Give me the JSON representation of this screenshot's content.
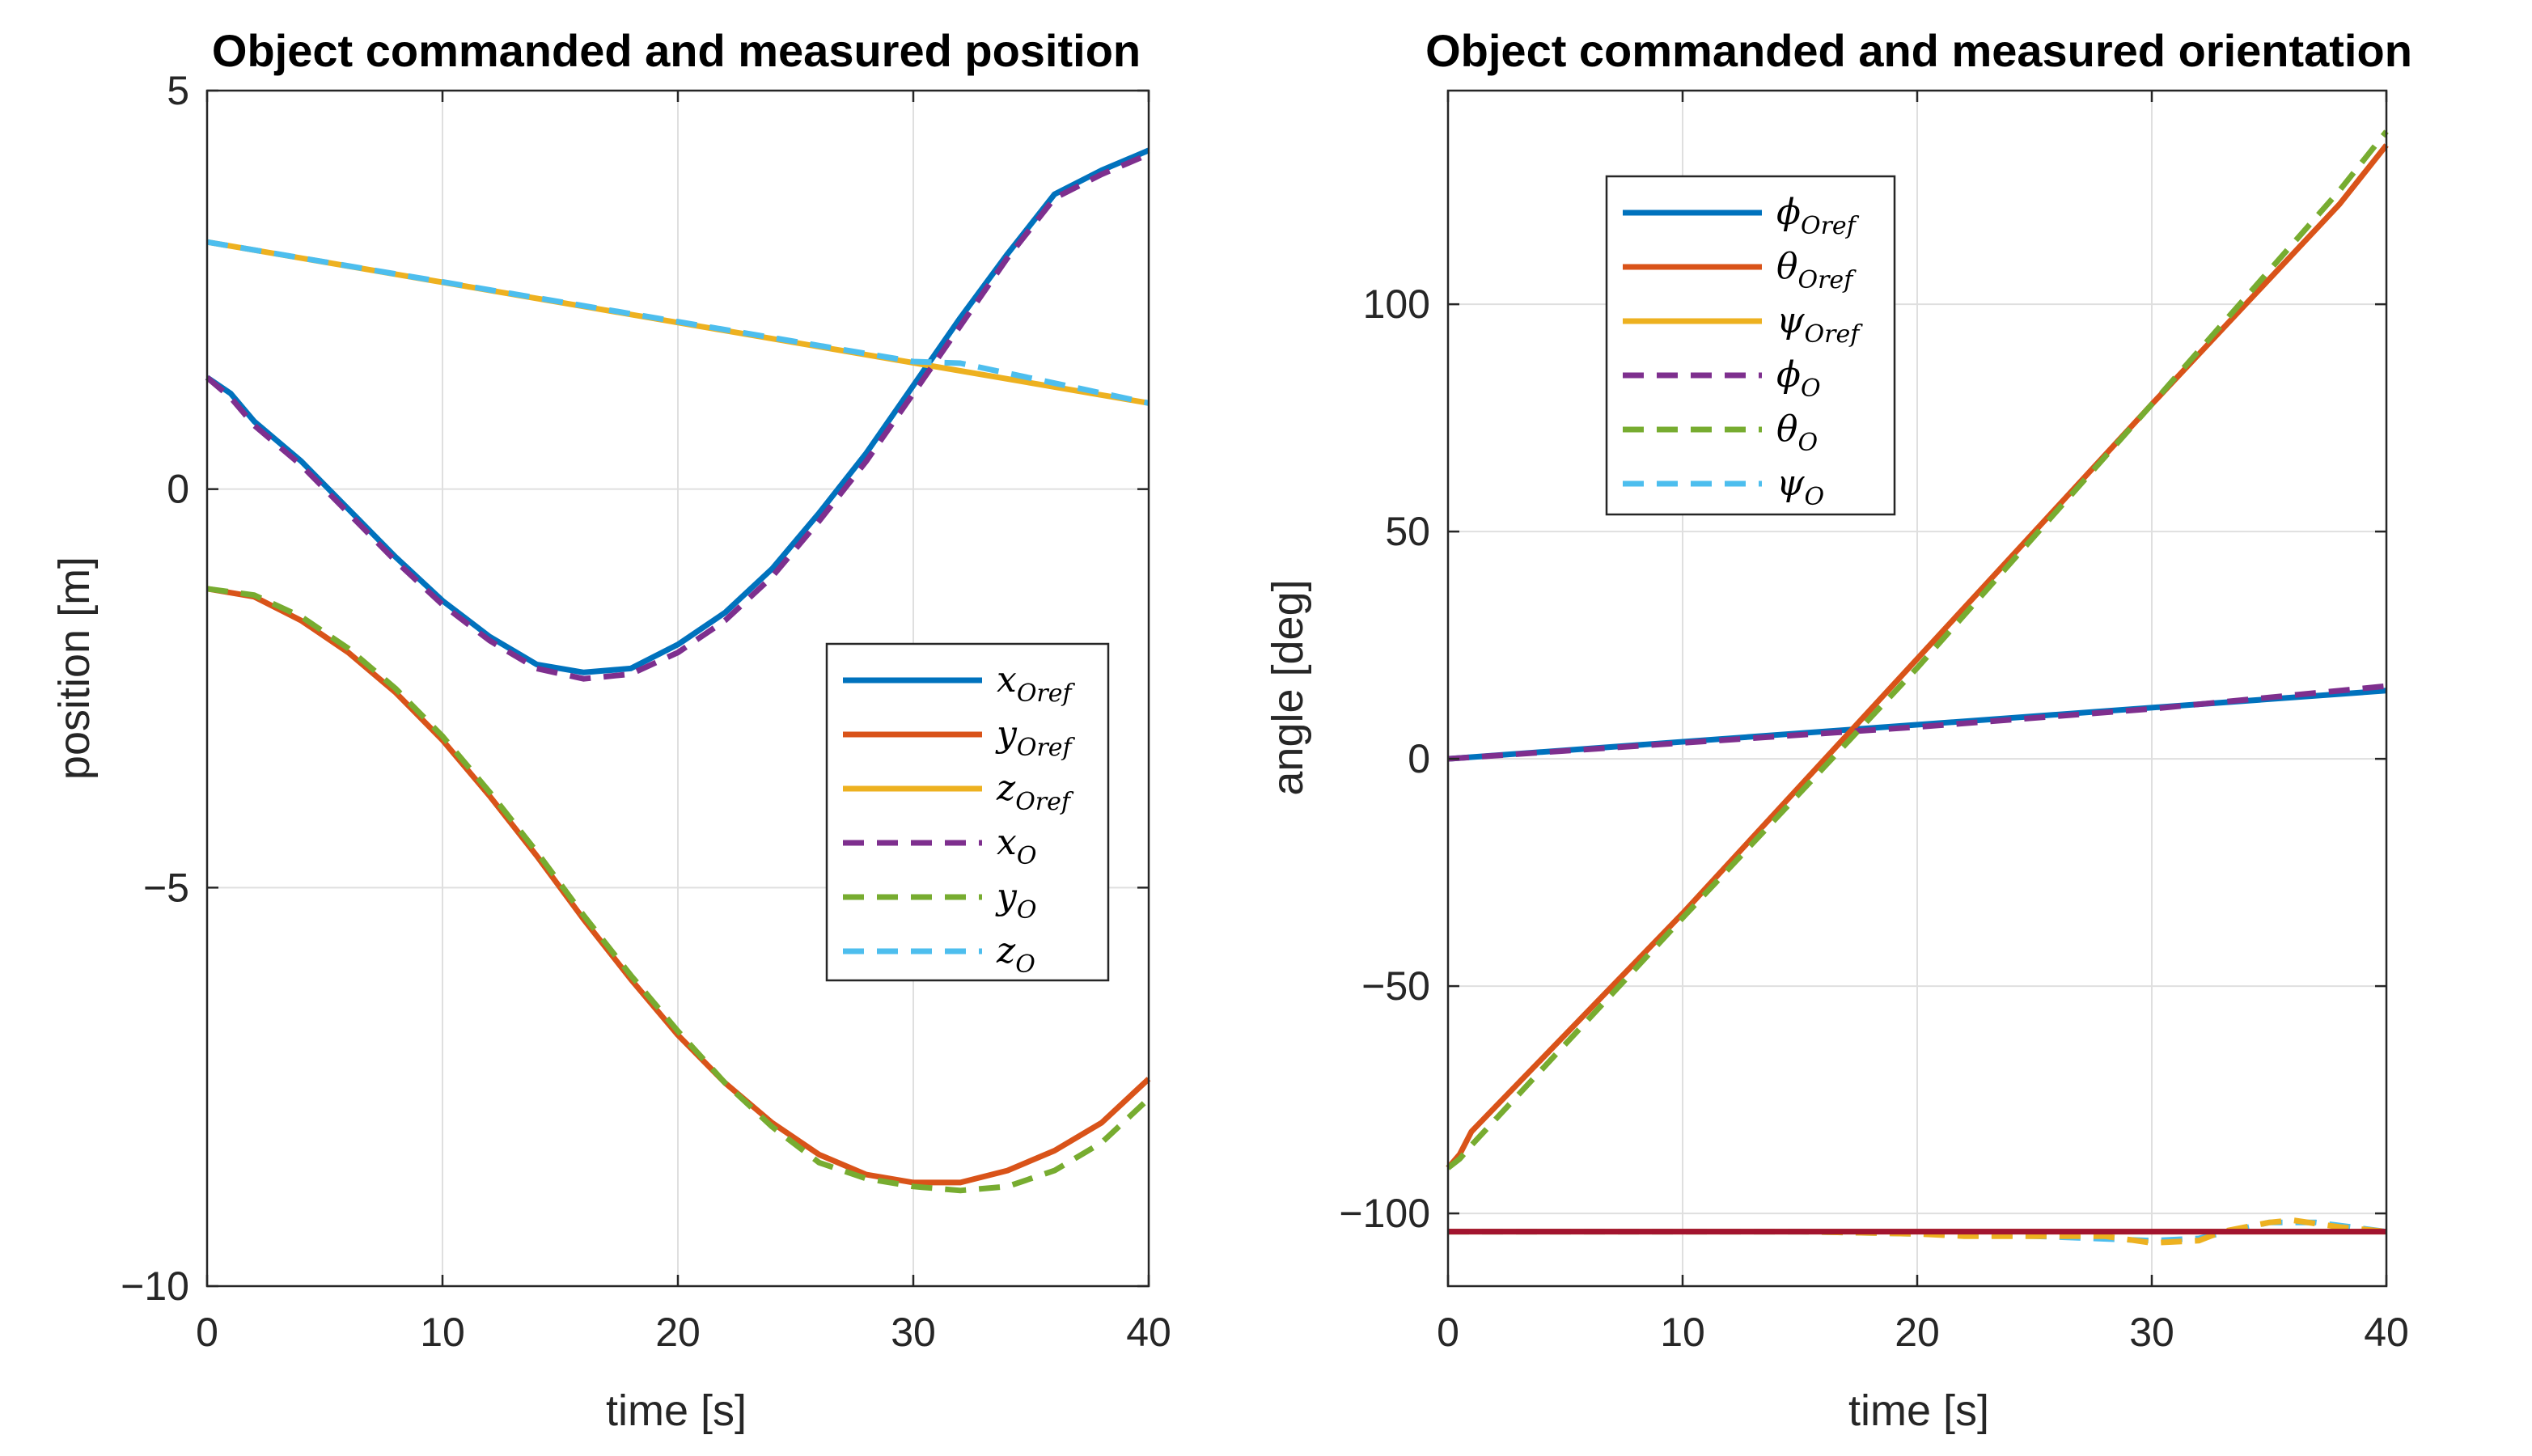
{
  "chart_data": [
    {
      "type": "line",
      "id": "position",
      "title": "Object commanded and measured position",
      "xlabel": "time [s]",
      "ylabel": "position [m]",
      "xlim": [
        0,
        40
      ],
      "ylim": [
        -10,
        5
      ],
      "xticks": [
        0,
        10,
        20,
        30,
        40
      ],
      "yticks": [
        -10,
        -5,
        0,
        5
      ],
      "ytick_labels": [
        "−10",
        "−5",
        "0",
        "5"
      ],
      "xtick_labels": [
        "0",
        "10",
        "20",
        "30",
        "40"
      ],
      "grid": true,
      "legend_position": "right-middle",
      "series": [
        {
          "name": "x_Oref",
          "label": "x",
          "sub": "Oref",
          "color": "#0072BD",
          "dashed": false,
          "x": [
            0,
            1,
            2,
            4,
            6,
            8,
            10,
            12,
            14,
            16,
            18,
            20,
            22,
            24,
            26,
            28,
            30,
            32,
            34,
            36,
            38,
            40
          ],
          "y": [
            1.4,
            1.2,
            0.85,
            0.35,
            -0.25,
            -0.85,
            -1.4,
            -1.85,
            -2.2,
            -2.3,
            -2.25,
            -1.95,
            -1.55,
            -1.0,
            -0.3,
            0.45,
            1.3,
            2.15,
            2.95,
            3.7,
            4.0,
            4.25
          ]
        },
        {
          "name": "y_Oref",
          "label": "y",
          "sub": "Oref",
          "color": "#D95319",
          "dashed": false,
          "x": [
            0,
            2,
            4,
            6,
            8,
            10,
            12,
            14,
            16,
            18,
            20,
            22,
            24,
            26,
            28,
            30,
            32,
            34,
            36,
            38,
            40
          ],
          "y": [
            -1.25,
            -1.35,
            -1.65,
            -2.05,
            -2.55,
            -3.15,
            -3.85,
            -4.6,
            -5.4,
            -6.15,
            -6.85,
            -7.45,
            -7.95,
            -8.35,
            -8.6,
            -8.7,
            -8.7,
            -8.55,
            -8.3,
            -7.95,
            -7.4
          ]
        },
        {
          "name": "z_Oref",
          "label": "z",
          "sub": "Oref",
          "color": "#EDB120",
          "dashed": false,
          "x": [
            0,
            40
          ],
          "y": [
            3.1,
            1.08
          ]
        },
        {
          "name": "x_O",
          "label": "x",
          "sub": "O",
          "color": "#7E2F8E",
          "dashed": true,
          "x": [
            0,
            1,
            2,
            4,
            6,
            8,
            10,
            12,
            14,
            16,
            18,
            20,
            22,
            24,
            26,
            28,
            30,
            32,
            34,
            36,
            38,
            40
          ],
          "y": [
            1.4,
            1.15,
            0.8,
            0.3,
            -0.3,
            -0.9,
            -1.45,
            -1.9,
            -2.25,
            -2.38,
            -2.32,
            -2.05,
            -1.65,
            -1.1,
            -0.4,
            0.35,
            1.2,
            2.05,
            2.9,
            3.65,
            3.95,
            4.2
          ]
        },
        {
          "name": "y_O",
          "label": "y",
          "sub": "O",
          "color": "#77AC30",
          "dashed": true,
          "x": [
            0,
            2,
            4,
            6,
            8,
            10,
            12,
            14,
            16,
            18,
            20,
            22,
            24,
            26,
            28,
            30,
            32,
            34,
            36,
            38,
            40
          ],
          "y": [
            -1.25,
            -1.33,
            -1.6,
            -2.0,
            -2.5,
            -3.1,
            -3.8,
            -4.55,
            -5.35,
            -6.1,
            -6.8,
            -7.45,
            -8.0,
            -8.45,
            -8.65,
            -8.75,
            -8.8,
            -8.75,
            -8.55,
            -8.2,
            -7.65
          ]
        },
        {
          "name": "z_O",
          "label": "z",
          "sub": "O",
          "color": "#4DBEEE",
          "dashed": true,
          "x": [
            0,
            10,
            20,
            30,
            32,
            40
          ],
          "y": [
            3.1,
            2.6,
            2.1,
            1.6,
            1.58,
            1.08
          ]
        }
      ]
    },
    {
      "type": "line",
      "id": "orientation",
      "title": "Object commanded and measured orientation",
      "xlabel": "time [s]",
      "ylabel": "angle [deg]",
      "xlim": [
        0,
        40
      ],
      "ylim": [
        -116,
        147
      ],
      "xticks": [
        0,
        10,
        20,
        30,
        40
      ],
      "yticks": [
        -100,
        -50,
        0,
        50,
        100
      ],
      "ytick_labels": [
        "−100",
        "−50",
        "0",
        "50",
        "100"
      ],
      "xtick_labels": [
        "0",
        "10",
        "20",
        "30",
        "40"
      ],
      "grid": true,
      "legend_position": "top-left",
      "series": [
        {
          "name": "phi_Oref",
          "label": "ϕ",
          "sub": "Oref",
          "color": "#0072BD",
          "dashed": false,
          "x": [
            0,
            40
          ],
          "y": [
            0,
            15
          ]
        },
        {
          "name": "theta_Oref",
          "label": "θ",
          "sub": "Oref",
          "color": "#D95319",
          "dashed": false,
          "x": [
            0,
            0.5,
            1,
            10,
            20,
            30,
            38,
            40
          ],
          "y": [
            -90,
            -87,
            -82,
            -34,
            22,
            78,
            122,
            135
          ]
        },
        {
          "name": "psi_Oref",
          "label": "ψ",
          "sub": "Oref",
          "color": "#EDB120",
          "dashed": false,
          "x": [
            0,
            40
          ],
          "y": [
            -104,
            -104
          ]
        },
        {
          "name": "phi_O",
          "label": "ϕ",
          "sub": "O",
          "color": "#7E2F8E",
          "dashed": true,
          "x": [
            0,
            10,
            20,
            30,
            40
          ],
          "y": [
            0,
            3.5,
            7,
            11,
            16
          ]
        },
        {
          "name": "theta_O",
          "label": "θ",
          "sub": "O",
          "color": "#77AC30",
          "dashed": true,
          "x": [
            0,
            0.5,
            1,
            10,
            20,
            30,
            38,
            40
          ],
          "y": [
            -90,
            -88,
            -85,
            -35,
            20,
            78,
            125,
            138
          ]
        },
        {
          "name": "psi_O",
          "label": "ψ",
          "sub": "O",
          "color": "#4DBEEE",
          "dashed": true,
          "x": [
            0,
            5,
            10,
            15,
            20,
            25,
            30,
            32,
            35,
            37,
            40
          ],
          "y": [
            -104,
            -104,
            -104,
            -104,
            -104.5,
            -105,
            -106,
            -105.5,
            -102,
            -102,
            -104
          ]
        }
      ],
      "extra_traces": [
        {
          "name": "psi_O_visible",
          "color": "#EDB120",
          "dashed": true,
          "x": [
            0,
            5,
            10,
            15,
            20,
            22,
            25,
            28,
            30,
            32,
            33,
            35,
            36,
            38,
            40
          ],
          "y": [
            -104,
            -104,
            -104,
            -104,
            -104.5,
            -105,
            -105,
            -105,
            -106.5,
            -106,
            -104,
            -102,
            -101.5,
            -103,
            -104
          ]
        },
        {
          "name": "psi_Oref_visible",
          "color": "#A2142F",
          "dashed": false,
          "x": [
            0,
            40
          ],
          "y": [
            -104,
            -104
          ]
        }
      ]
    }
  ]
}
